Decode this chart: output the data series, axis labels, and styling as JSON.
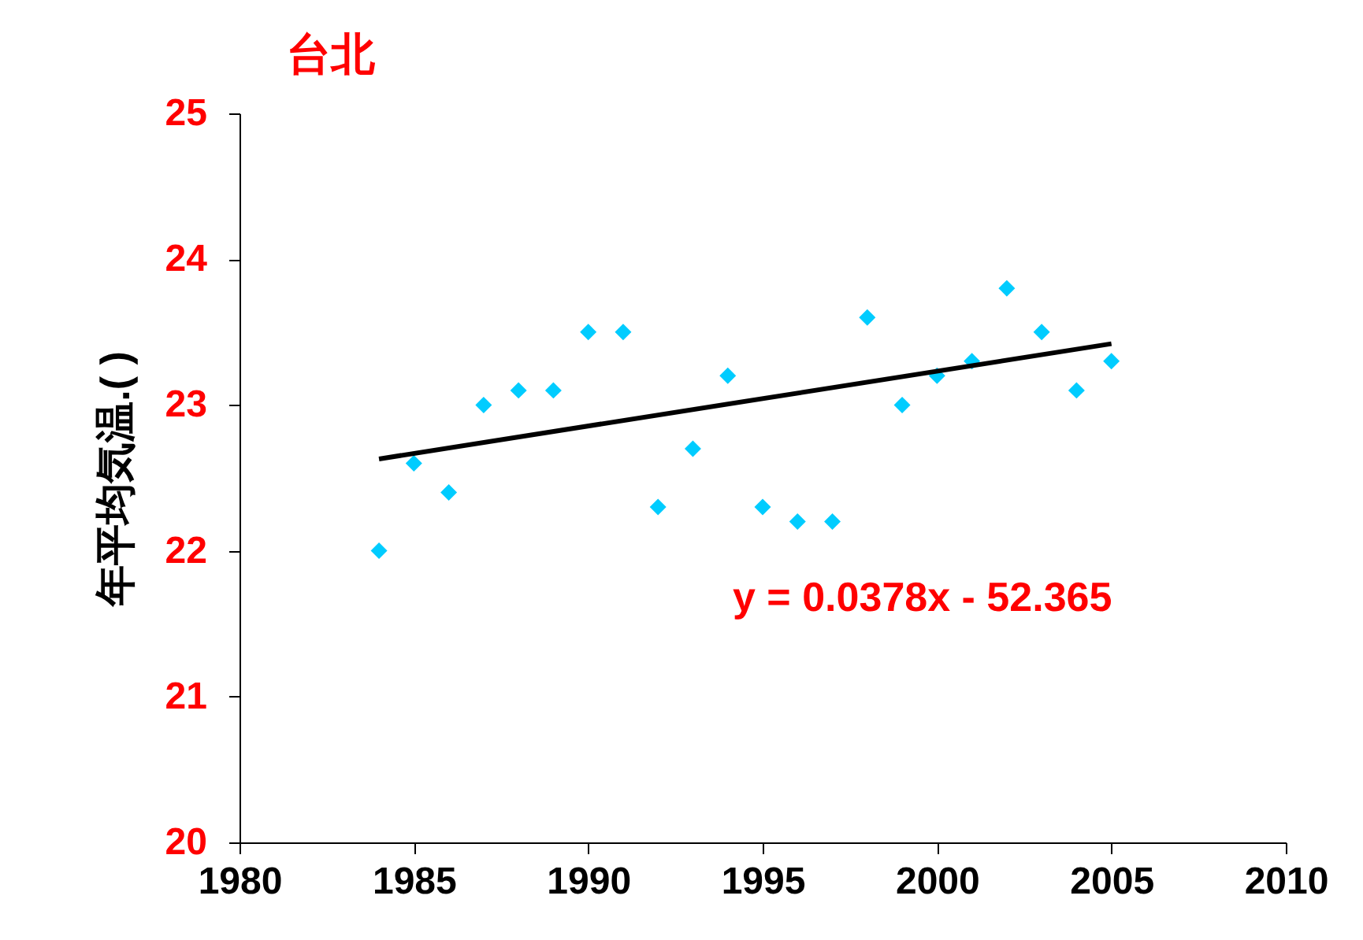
{
  "chart_data": {
    "type": "scatter",
    "title": "台北",
    "ylabel": "年平均気温.(  )",
    "x": [
      1984,
      1985,
      1986,
      1987,
      1988,
      1989,
      1990,
      1991,
      1992,
      1993,
      1994,
      1995,
      1996,
      1997,
      1998,
      1999,
      2000,
      2001,
      2002,
      2003,
      2004,
      2005
    ],
    "series": [
      {
        "type": "scatter",
        "color": "#00ccff",
        "marker": "diamond",
        "values": [
          22.0,
          22.6,
          22.4,
          23.0,
          23.1,
          23.1,
          23.5,
          23.5,
          22.3,
          22.7,
          23.2,
          22.3,
          22.2,
          22.2,
          23.6,
          23.0,
          23.2,
          23.3,
          23.8,
          23.5,
          23.1,
          23.3
        ]
      },
      {
        "type": "line",
        "color": "#000000",
        "x": [
          1984,
          2005
        ],
        "values": [
          22.63,
          23.42
        ],
        "marker": "none"
      }
    ],
    "annotations": [
      "y = 0.0378x  -  52.365"
    ],
    "xlim": [
      1980,
      2010
    ],
    "xticks": [
      1980,
      1985,
      1990,
      1995,
      2000,
      2005,
      2010
    ],
    "ylim": [
      20,
      25
    ],
    "yticks": [
      20,
      21,
      22,
      23,
      24,
      25
    ],
    "grid": false
  }
}
